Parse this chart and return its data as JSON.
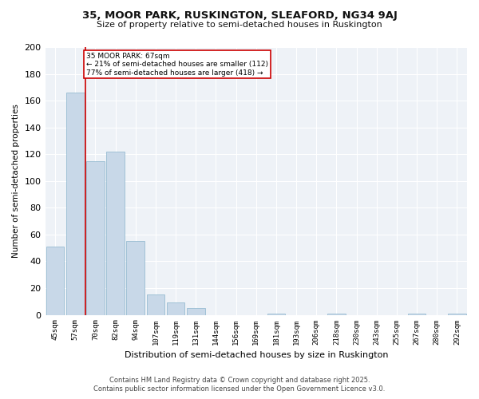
{
  "title": "35, MOOR PARK, RUSKINGTON, SLEAFORD, NG34 9AJ",
  "subtitle": "Size of property relative to semi-detached houses in Ruskington",
  "xlabel": "Distribution of semi-detached houses by size in Ruskington",
  "ylabel": "Number of semi-detached properties",
  "bar_color": "#c8d8e8",
  "bar_edge_color": "#8ab4cc",
  "categories": [
    "45sqm",
    "57sqm",
    "70sqm",
    "82sqm",
    "94sqm",
    "107sqm",
    "119sqm",
    "131sqm",
    "144sqm",
    "156sqm",
    "169sqm",
    "181sqm",
    "193sqm",
    "206sqm",
    "218sqm",
    "230sqm",
    "243sqm",
    "255sqm",
    "267sqm",
    "280sqm",
    "292sqm"
  ],
  "values": [
    51,
    166,
    115,
    122,
    55,
    15,
    9,
    5,
    0,
    0,
    0,
    1,
    0,
    0,
    1,
    0,
    0,
    0,
    1,
    0,
    1
  ],
  "subject_label": "35 MOOR PARK: 67sqm",
  "annotation_line1": "← 21% of semi-detached houses are smaller (112)",
  "annotation_line2": "77% of semi-detached houses are larger (418) →",
  "red_line_x": 1.5,
  "ylim": [
    0,
    200
  ],
  "yticks": [
    0,
    20,
    40,
    60,
    80,
    100,
    120,
    140,
    160,
    180,
    200
  ],
  "red_line_color": "#cc0000",
  "annotation_box_color": "#cc0000",
  "footer_line1": "Contains HM Land Registry data © Crown copyright and database right 2025.",
  "footer_line2": "Contains public sector information licensed under the Open Government Licence v3.0.",
  "background_color": "#eef2f7"
}
